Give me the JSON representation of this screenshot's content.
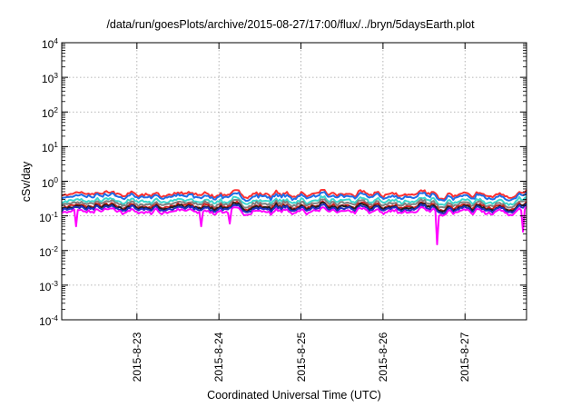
{
  "chart_data": {
    "type": "line",
    "title": "/data/run/goesPlots/archive/2015-08-27/17:00/flux/../bryn/5daysEarth.plot",
    "xlabel": "Coordinated Universal Time (UTC)",
    "ylabel": "cSv/day",
    "yscale": "log",
    "ylim": [
      0.0001,
      10000
    ],
    "y_ticks": [
      {
        "base": "10",
        "exp": "4",
        "value": 10000
      },
      {
        "base": "10",
        "exp": "3",
        "value": 1000
      },
      {
        "base": "10",
        "exp": "2",
        "value": 100
      },
      {
        "base": "10",
        "exp": "1",
        "value": 10
      },
      {
        "base": "10",
        "exp": "0",
        "value": 1
      },
      {
        "base": "10",
        "exp": "-1",
        "value": 0.1
      },
      {
        "base": "10",
        "exp": "-2",
        "value": 0.01
      },
      {
        "base": "10",
        "exp": "-3",
        "value": 0.001
      },
      {
        "base": "10",
        "exp": "-4",
        "value": 0.0001
      }
    ],
    "x_ticks": [
      "2015-8-23",
      "2015-8-24",
      "2015-8-25",
      "2015-8-26",
      "2015-8-27"
    ],
    "xlim": [
      "2015-08-22 02:00",
      "2015-08-27 18:00"
    ],
    "grid": true,
    "series": [
      {
        "color": "#ff3030",
        "level": 0.42
      },
      {
        "color": "#1e6fe8",
        "level": 0.36
      },
      {
        "color": "#3cd8d0",
        "level": 0.27
      },
      {
        "color": "#808080",
        "level": 0.225
      },
      {
        "color": "#d02020",
        "level": 0.19
      },
      {
        "color": "#202020",
        "level": 0.175
      },
      {
        "color": "#2030c0",
        "level": 0.16
      },
      {
        "color": "#ff00ff",
        "level": 0.135
      }
    ],
    "dips": [
      {
        "x": "2015-08-22 06:00",
        "value": 0.05
      },
      {
        "x": "2015-08-23 19:00",
        "value": 0.05
      },
      {
        "x": "2015-08-24 03:00",
        "value": 0.06
      },
      {
        "x": "2015-08-26 16:00",
        "value": 0.015
      },
      {
        "x": "2015-08-27 17:00",
        "value": 0.035
      }
    ]
  }
}
